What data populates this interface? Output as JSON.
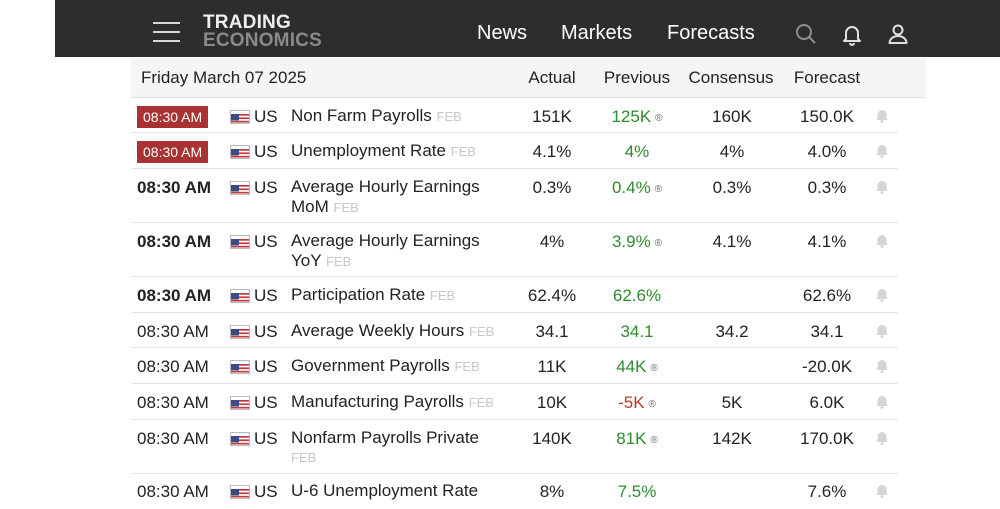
{
  "brand": {
    "line1": "TRADING",
    "line2": "ECONOMICS"
  },
  "nav": {
    "news": "News",
    "markets": "Markets",
    "forecasts": "Forecasts"
  },
  "icons": {
    "menu": "menu-icon",
    "search": "search-icon",
    "notifications": "bell-icon",
    "account": "user-icon"
  },
  "calendar": {
    "date": "Friday March 07 2025",
    "columns": {
      "actual": "Actual",
      "previous": "Previous",
      "consensus": "Consensus",
      "forecast": "Forecast"
    },
    "rows": [
      {
        "time": "08:30 AM",
        "country": "US",
        "event": "Non Farm Payrolls",
        "ref": "FEB",
        "actual": "151K",
        "previous": "125K",
        "consensus": "160K",
        "forecast": "150.0K"
      },
      {
        "time": "08:30 AM",
        "country": "US",
        "event": "Unemployment Rate",
        "ref": "FEB",
        "actual": "4.1%",
        "previous": "4%",
        "consensus": "4%",
        "forecast": "4.0%"
      },
      {
        "time": "08:30 AM",
        "country": "US",
        "event": "Average Hourly Earnings MoM",
        "ref": "FEB",
        "actual": "0.3%",
        "previous": "0.4%",
        "consensus": "0.3%",
        "forecast": "0.3%"
      },
      {
        "time": "08:30 AM",
        "country": "US",
        "event": "Average Hourly Earnings YoY",
        "ref": "FEB",
        "actual": "4%",
        "previous": "3.9%",
        "consensus": "4.1%",
        "forecast": "4.1%"
      },
      {
        "time": "08:30 AM",
        "country": "US",
        "event": "Participation Rate",
        "ref": "FEB",
        "actual": "62.4%",
        "previous": "62.6%",
        "consensus": "",
        "forecast": "62.6%"
      },
      {
        "time": "08:30 AM",
        "country": "US",
        "event": "Average Weekly Hours",
        "ref": "FEB",
        "actual": "34.1",
        "previous": "34.1",
        "consensus": "34.2",
        "forecast": "34.1"
      },
      {
        "time": "08:30 AM",
        "country": "US",
        "event": "Government Payrolls",
        "ref": "FEB",
        "actual": "11K",
        "previous": "44K",
        "consensus": "",
        "forecast": "-20.0K"
      },
      {
        "time": "08:30 AM",
        "country": "US",
        "event": "Manufacturing Payrolls",
        "ref": "FEB",
        "actual": "10K",
        "previous": "-5K",
        "consensus": "5K",
        "forecast": "6.0K"
      },
      {
        "time": "08:30 AM",
        "country": "US",
        "event": "Nonfarm Payrolls Private",
        "ref": "FEB",
        "actual": "140K",
        "previous": "81K",
        "consensus": "142K",
        "forecast": "170.0K"
      },
      {
        "time": "08:30 AM",
        "country": "US",
        "event": "U-6 Unemployment Rate",
        "ref": "",
        "actual": "8%",
        "previous": "7.5%",
        "consensus": "",
        "forecast": "7.6%"
      }
    ]
  },
  "colors": {
    "topbar": "#2d2d2d",
    "time_badge": "#a93232",
    "previous_up": "#2e8b2e",
    "previous_down": "#c0392b"
  }
}
